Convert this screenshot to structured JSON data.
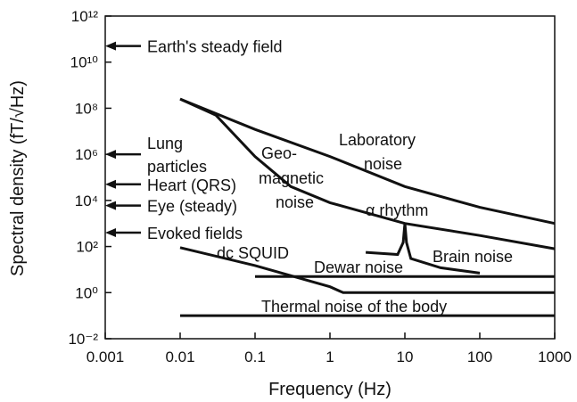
{
  "chart_data": {
    "type": "line",
    "xlabel": "Frequency (Hz)",
    "ylabel": "Spectral density (fT/√Hz)",
    "log_x": true,
    "log_y": true,
    "xlim": [
      0.001,
      1000
    ],
    "xticks": [
      0.001,
      0.01,
      0.1,
      1,
      10,
      100,
      1000
    ],
    "ylim": [
      0.01,
      1000000000000
    ],
    "yticks": [
      {
        "value": 1000000000000,
        "label": "10¹²"
      },
      {
        "value": 10000000000,
        "label": "10¹⁰"
      },
      {
        "value": 100000000,
        "label": "10⁸"
      },
      {
        "value": 1000000,
        "label": "10⁶"
      },
      {
        "value": 10000,
        "label": "10⁴"
      },
      {
        "value": 100,
        "label": "10²"
      },
      {
        "value": 1,
        "label": "10⁰"
      },
      {
        "value": 0.01,
        "label": "10⁻²"
      }
    ],
    "color": "#111111",
    "series": [
      {
        "label": [
          "Laboratory",
          "noise"
        ],
        "x": [
          0.01,
          0.1,
          1,
          10,
          100,
          1000
        ],
        "values": [
          250000000,
          12000000,
          800000,
          40000,
          5000,
          1000
        ]
      },
      {
        "label": [
          "Geo-",
          "magnetic",
          "noise"
        ],
        "x": [
          0.01,
          0.03,
          0.1,
          0.3,
          1,
          10,
          100,
          1000
        ],
        "values": [
          250000000,
          50000000,
          800000,
          40000,
          8000,
          1000,
          300,
          80
        ]
      },
      {
        "label": [
          "dc SQUID"
        ],
        "x": [
          0.01,
          0.1,
          1,
          1.5,
          1000
        ],
        "values": [
          90,
          15,
          1.8,
          1,
          1
        ]
      },
      {
        "label": [
          "Dewar noise"
        ],
        "x": [
          0.1,
          1000
        ],
        "values": [
          5,
          5
        ]
      },
      {
        "label": [
          "Thermal noise of the body"
        ],
        "x": [
          0.01,
          1000
        ],
        "values": [
          0.1,
          0.1
        ]
      },
      {
        "label": [
          "Brain noise"
        ],
        "x": [
          3,
          8,
          9.5,
          10,
          10.5,
          12,
          30,
          100
        ],
        "values": [
          56,
          45,
          150,
          1000,
          150,
          30,
          12,
          7
        ]
      }
    ],
    "annotations": [
      {
        "text": [
          "Earth's steady field"
        ],
        "y": 50000000000
      },
      {
        "text": [
          "Lung",
          "particles"
        ],
        "y": 1000000
      },
      {
        "text": [
          "Heart (QRS)"
        ],
        "y": 50000
      },
      {
        "text": [
          "Eye (steady)"
        ],
        "y": 6000
      },
      {
        "text": [
          "Evoked fields"
        ],
        "y": 400
      }
    ],
    "rhythm_label": "α rhythm"
  }
}
